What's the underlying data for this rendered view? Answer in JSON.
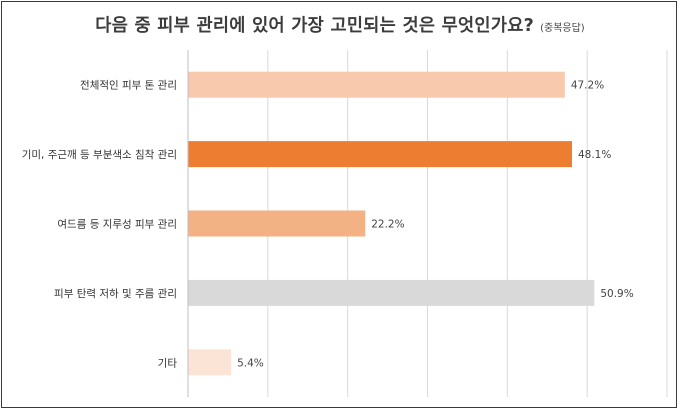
{
  "chart_data": {
    "type": "bar",
    "orientation": "horizontal",
    "title": "다음 중 피부 관리에 있어 가장 고민되는 것은 무엇인가요?",
    "subtitle": "(중복응답)",
    "categories": [
      "전체적인 피부 톤 관리",
      "기미, 주근깨 등 부분색소 침착 관리",
      "여드름 등 지루성 피부 관리",
      "피부 탄력 저하 및 주름 관리",
      "기타"
    ],
    "values": [
      47.2,
      48.1,
      22.2,
      50.9,
      5.4
    ],
    "value_labels": [
      "47.2%",
      "48.1%",
      "22.2%",
      "50.9%",
      "5.4%"
    ],
    "colors": [
      "#f8c9ad",
      "#ed7d31",
      "#f4b183",
      "#d9d9d9",
      "#fbe3d5"
    ],
    "xlim": [
      0,
      60
    ],
    "grid": true,
    "legend": "none",
    "xlabel": "",
    "ylabel": ""
  }
}
